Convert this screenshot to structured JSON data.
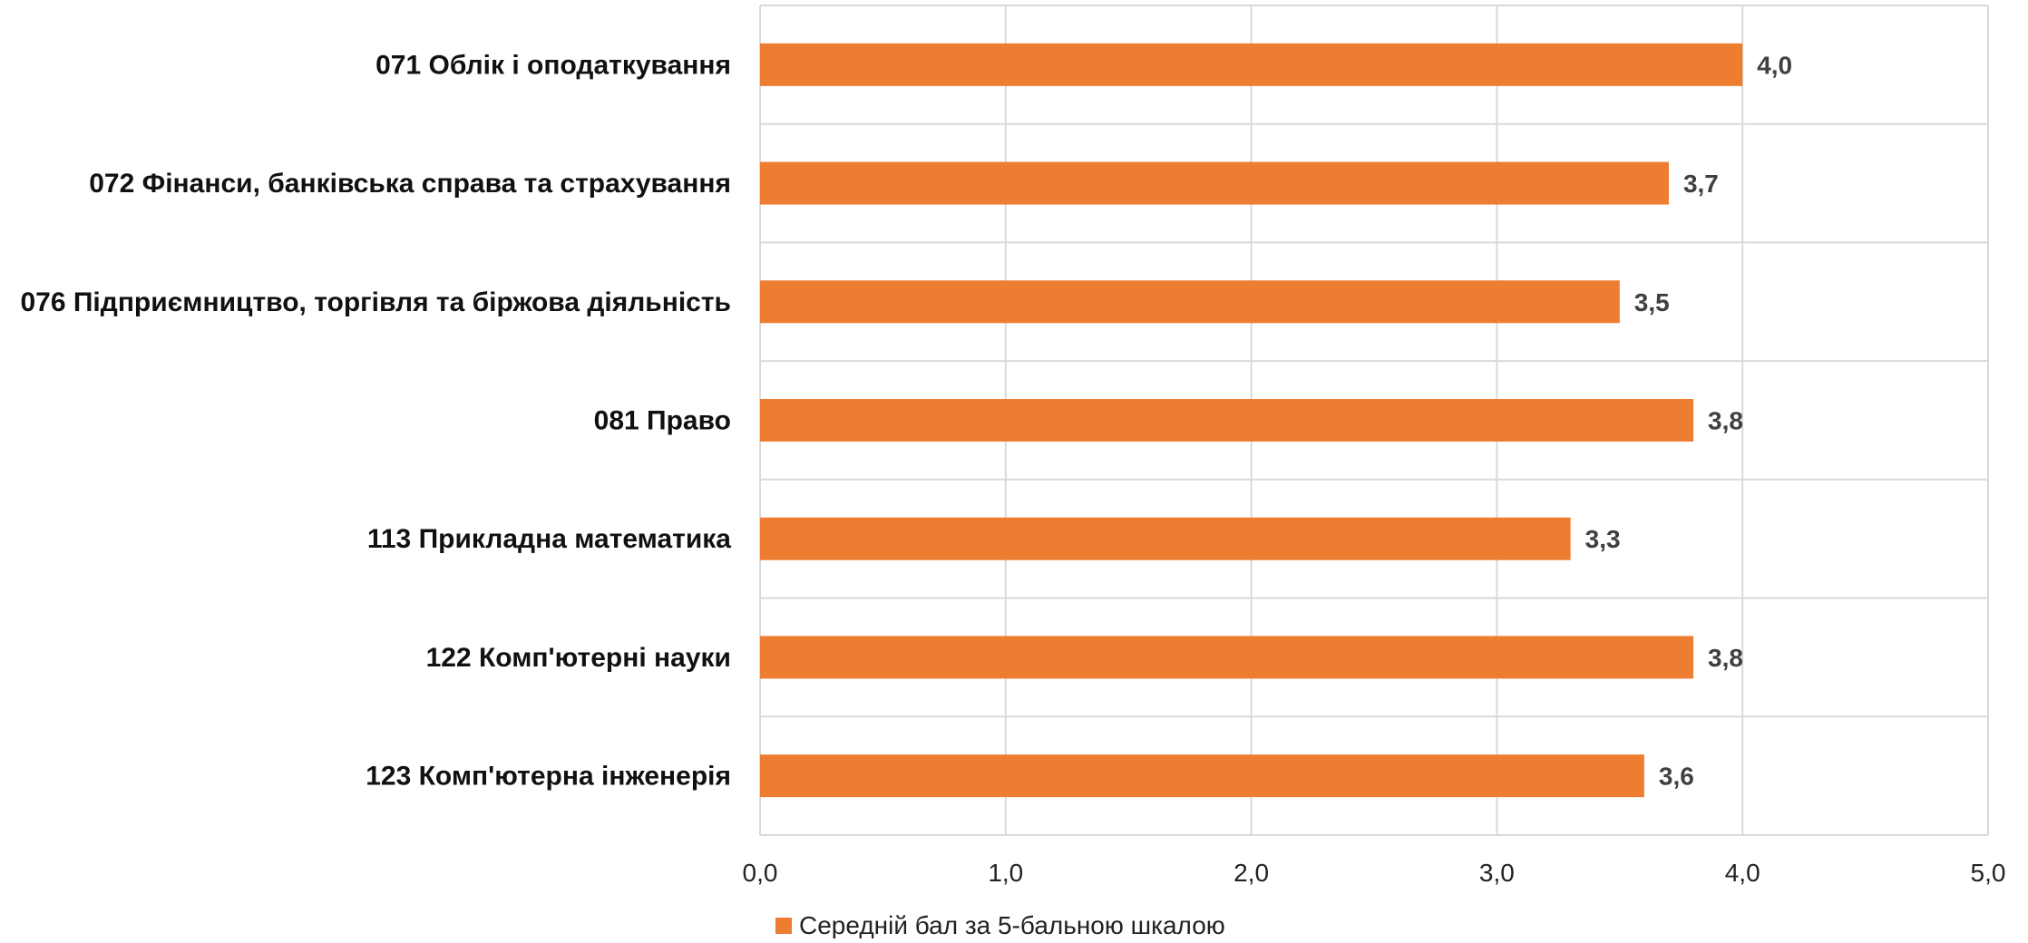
{
  "chart_data": {
    "type": "bar",
    "orientation": "horizontal",
    "categories": [
      "071 Облік і оподаткування",
      "072 Фінанси, банківська справа та страхування",
      "076 Підприємництво, торгівля та біржова діяльність",
      "081 Право",
      "113 Прикладна математика",
      "122 Комп'ютерні науки",
      "123 Комп'ютерна інженерія"
    ],
    "series": [
      {
        "name": "Середній бал за 5-бальною шкалою",
        "values": [
          4.0,
          3.7,
          3.5,
          3.8,
          3.3,
          3.8,
          3.6
        ],
        "data_labels": [
          "4,0",
          "3,7",
          "3,5",
          "3,8",
          "3,3",
          "3,8",
          "3,6"
        ],
        "color": "#ED7D31"
      }
    ],
    "xlim": [
      0,
      5
    ],
    "x_ticks": [
      0,
      1,
      2,
      3,
      4,
      5
    ],
    "x_tick_labels": [
      "0,0",
      "1,0",
      "2,0",
      "3,0",
      "4,0",
      "5,0"
    ],
    "grid": true,
    "legend_position": "bottom"
  },
  "colors": {
    "bar": "#ED7D31",
    "grid": "#D9D9D9"
  }
}
